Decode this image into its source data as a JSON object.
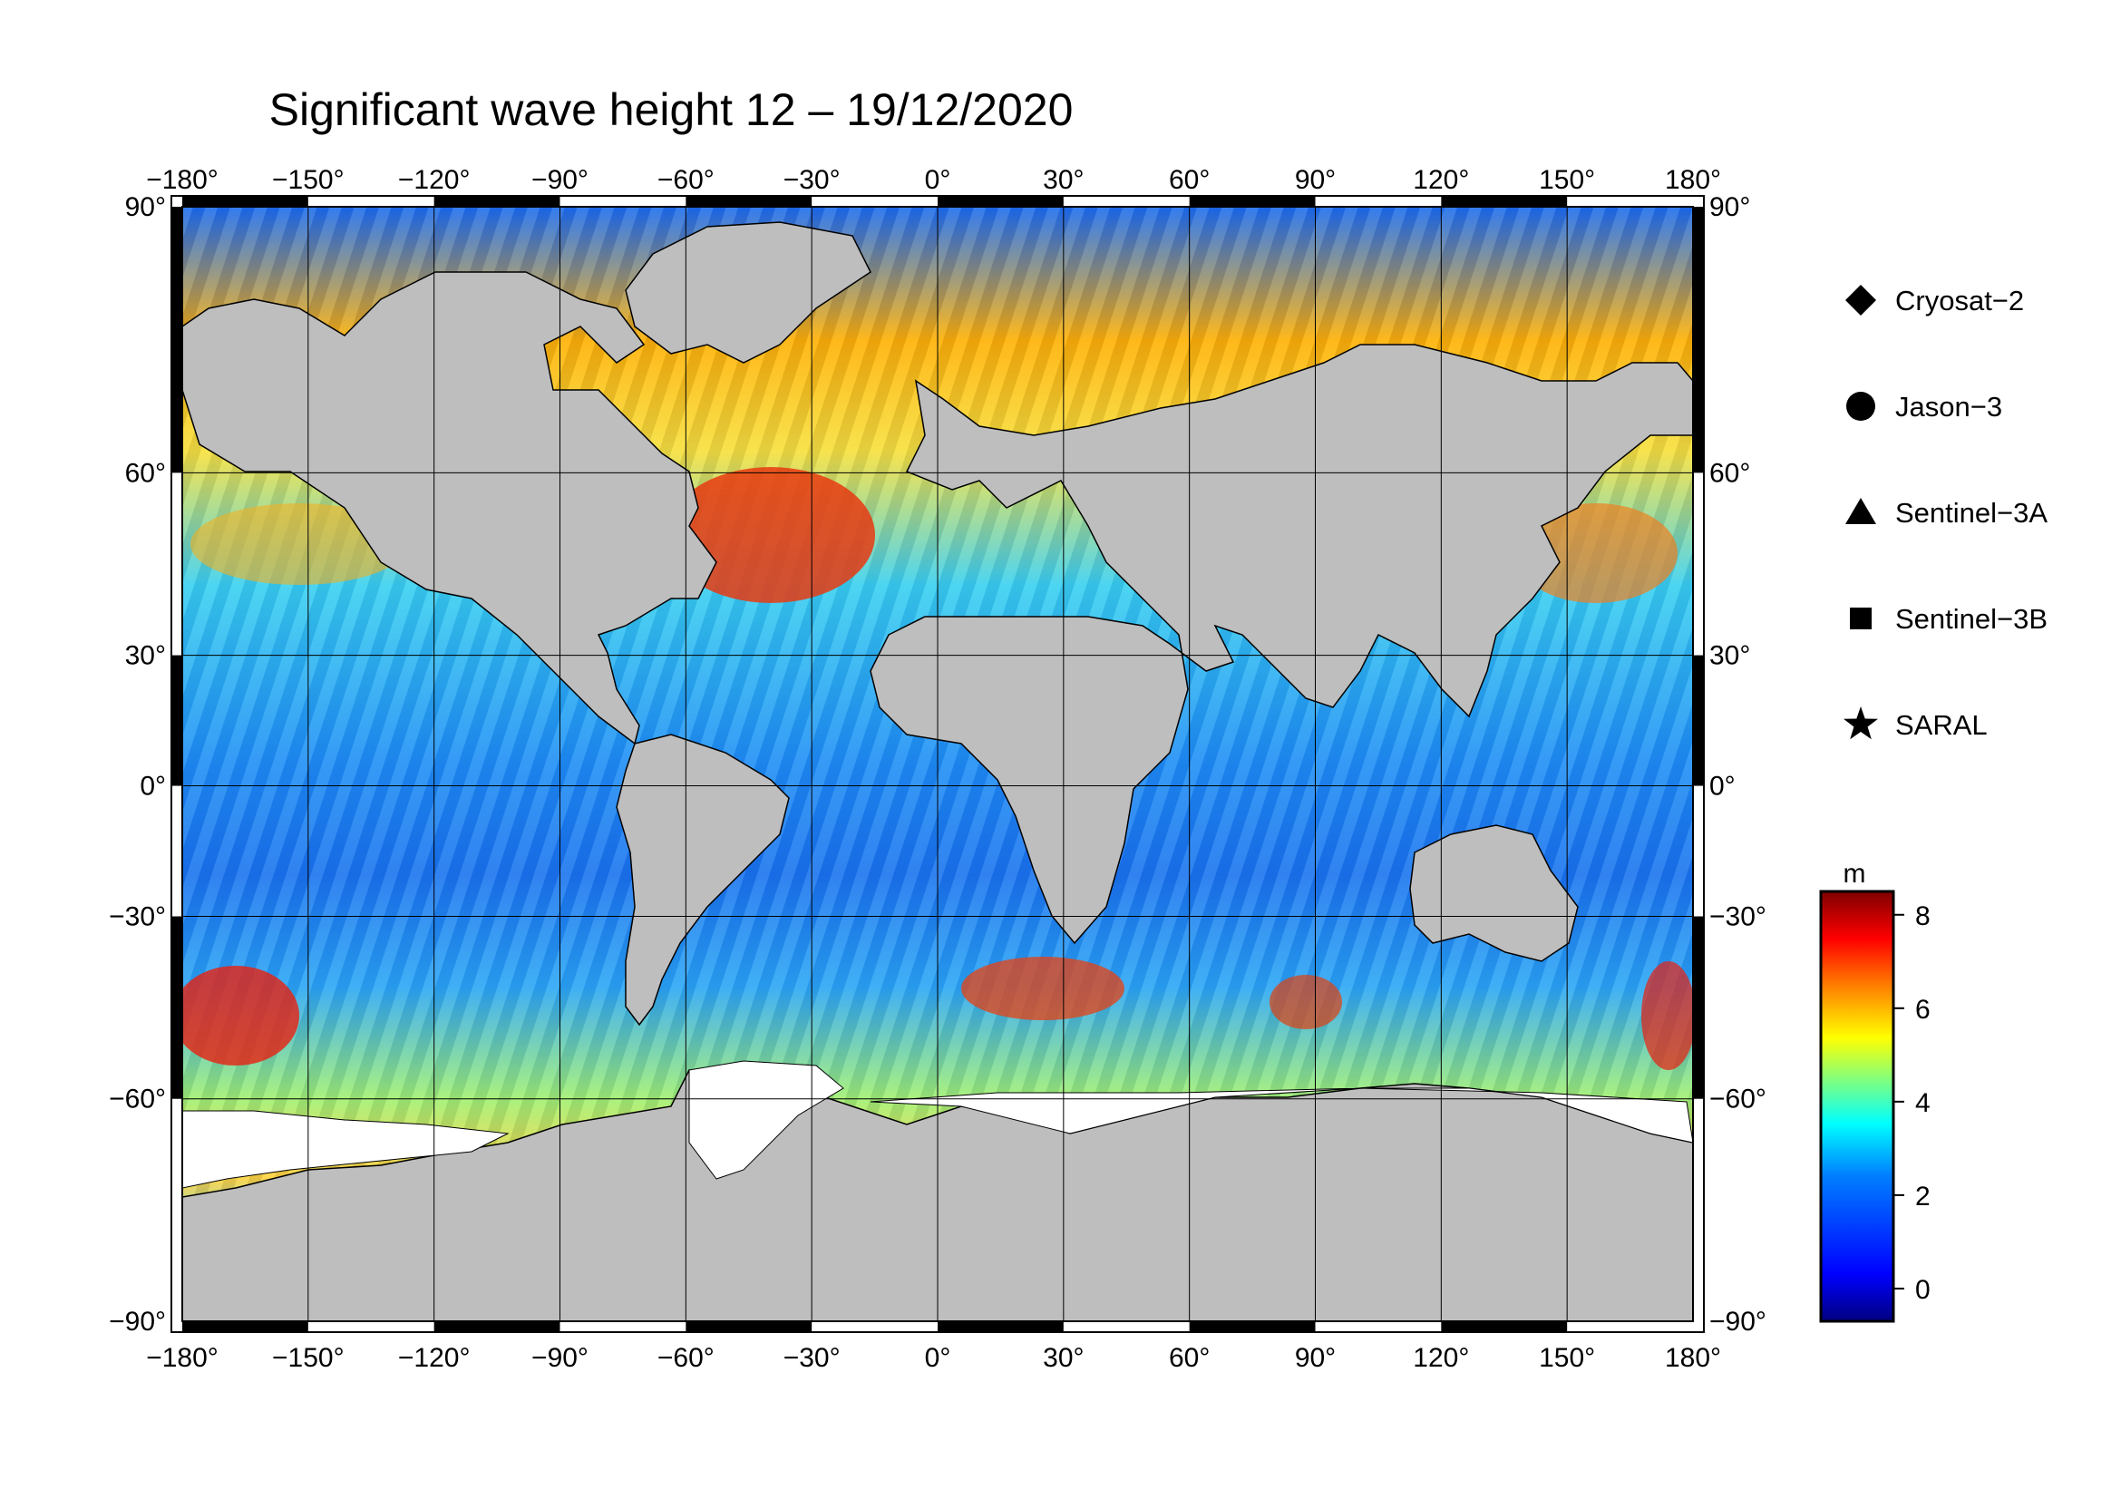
{
  "title": "Significant wave height 12 – 19/12/2020",
  "map": {
    "lon_ticks": [
      {
        "value": -180,
        "label": "−180°"
      },
      {
        "value": -150,
        "label": "−150°"
      },
      {
        "value": -120,
        "label": "−120°"
      },
      {
        "value": -90,
        "label": "−90°"
      },
      {
        "value": -60,
        "label": "−60°"
      },
      {
        "value": -30,
        "label": "−30°"
      },
      {
        "value": 0,
        "label": "0°"
      },
      {
        "value": 30,
        "label": "30°"
      },
      {
        "value": 60,
        "label": "60°"
      },
      {
        "value": 90,
        "label": "90°"
      },
      {
        "value": 120,
        "label": "120°"
      },
      {
        "value": 150,
        "label": "150°"
      },
      {
        "value": 180,
        "label": "180°"
      }
    ],
    "lat_ticks": [
      {
        "value": 90,
        "label": "90°"
      },
      {
        "value": 60,
        "label": "60°"
      },
      {
        "value": 30,
        "label": "30°"
      },
      {
        "value": 0,
        "label": "0°"
      },
      {
        "value": -30,
        "label": "−30°"
      },
      {
        "value": -60,
        "label": "−60°"
      },
      {
        "value": -90,
        "label": "−90°"
      }
    ],
    "projection": "Mercator",
    "lon_range": [
      -180,
      180
    ],
    "lat_range": [
      -78,
      80
    ]
  },
  "legend": {
    "items": [
      {
        "label": "Cryosat−2",
        "marker": "diamond"
      },
      {
        "label": "Jason−3",
        "marker": "circle"
      },
      {
        "label": "Sentinel−3A",
        "marker": "triangle"
      },
      {
        "label": "Sentinel−3B",
        "marker": "square"
      },
      {
        "label": "SARAL",
        "marker": "star"
      }
    ]
  },
  "colorbar": {
    "unit": "m",
    "range": [
      -0.7,
      8.5
    ],
    "ticks": [
      {
        "value": 0,
        "label": "0"
      },
      {
        "value": 2,
        "label": "2"
      },
      {
        "value": 4,
        "label": "4"
      },
      {
        "value": 6,
        "label": "6"
      },
      {
        "value": 8,
        "label": "8"
      }
    ],
    "colors": [
      "#00007f",
      "#0000ff",
      "#007fff",
      "#00ffff",
      "#7fff7f",
      "#ffff00",
      "#ff7f00",
      "#ff0000",
      "#7f0000"
    ]
  },
  "colors": {
    "land": "#bebebe",
    "ice": "#ffffff",
    "frame": "#000000"
  }
}
